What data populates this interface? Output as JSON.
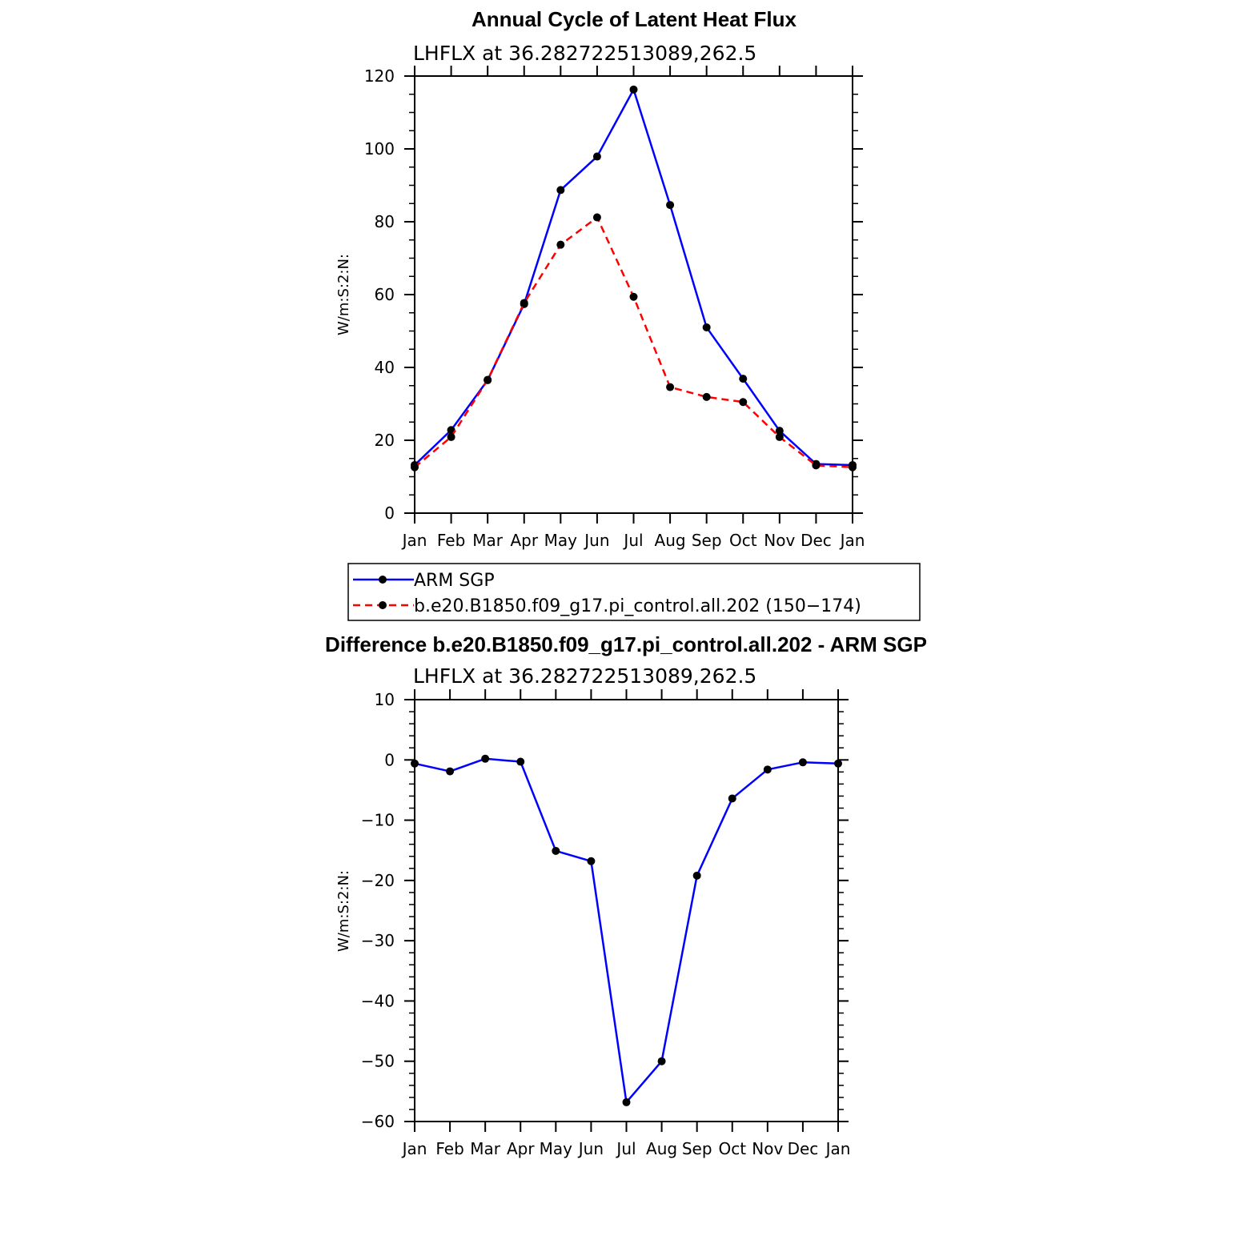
{
  "chart_data": [
    {
      "type": "line",
      "title": "Annual Cycle of Latent Heat Flux",
      "subtitle": "LHFLX at 36.282722513089,262.5",
      "xlabel": "",
      "ylabel": "W/m:S:2:N:",
      "categories": [
        "Jan",
        "Feb",
        "Mar",
        "Apr",
        "May",
        "Jun",
        "Jul",
        "Aug",
        "Sep",
        "Oct",
        "Nov",
        "Dec",
        "Jan"
      ],
      "ylim": [
        0,
        120
      ],
      "yticks": [
        0,
        20,
        40,
        60,
        80,
        100,
        120
      ],
      "ytick_labels": [
        "0",
        "20",
        "40",
        "60",
        "80",
        "100",
        "120"
      ],
      "grid": false,
      "legend_position": "below",
      "series": [
        {
          "name": "ARM SGP",
          "color": "#0000ff",
          "dash": "solid",
          "marker": "dot",
          "values": [
            13.2,
            22.8,
            36.5,
            57.4,
            88.7,
            97.9,
            116.3,
            84.6,
            51.0,
            36.9,
            22.6,
            13.5,
            13.2
          ]
        },
        {
          "name": "b.e20.B1850.f09_g17.pi_control.all.202 (150−174)",
          "color": "#ff0000",
          "dash": "dashed",
          "marker": "dot",
          "values": [
            12.6,
            20.9,
            36.6,
            57.7,
            73.7,
            81.2,
            59.4,
            34.6,
            31.9,
            30.5,
            20.9,
            13.1,
            12.6
          ]
        }
      ]
    },
    {
      "type": "line",
      "title": "Difference b.e20.B1850.f09_g17.pi_control.all.202 - ARM SGP",
      "subtitle": "LHFLX at 36.282722513089,262.5",
      "xlabel": "",
      "ylabel": "W/m:S:2:N:",
      "categories": [
        "Jan",
        "Feb",
        "Mar",
        "Apr",
        "May",
        "Jun",
        "Jul",
        "Aug",
        "Sep",
        "Oct",
        "Nov",
        "Dec",
        "Jan"
      ],
      "ylim": [
        -60,
        10
      ],
      "yticks": [
        -60,
        -50,
        -40,
        -30,
        -20,
        -10,
        0,
        10
      ],
      "ytick_labels": [
        "−60",
        "−50",
        "−40",
        "−30",
        "−20",
        "−10",
        "0",
        "10"
      ],
      "grid": false,
      "series": [
        {
          "color": "#0000ff",
          "dash": "solid",
          "marker": "dot",
          "values": [
            -0.6,
            -1.9,
            0.2,
            -0.3,
            -15.1,
            -16.8,
            -56.8,
            -50.0,
            -19.2,
            -6.4,
            -1.6,
            -0.4,
            -0.6
          ]
        }
      ]
    }
  ]
}
